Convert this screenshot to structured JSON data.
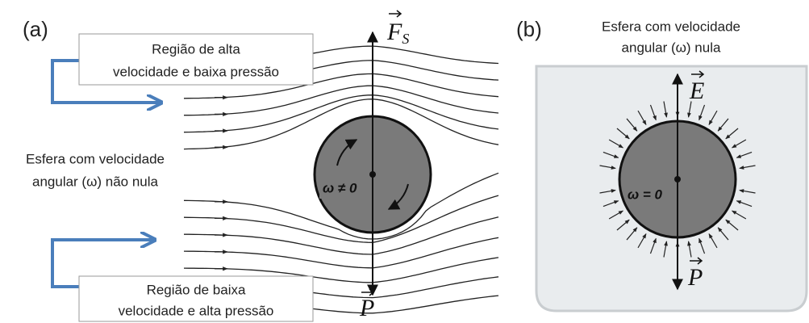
{
  "panel_a": {
    "label": "(a)",
    "top_box": {
      "lines": [
        "Região de alta",
        "velocidade e baixa pressão"
      ]
    },
    "side_note": {
      "lines": [
        "Esfera com velocidade",
        "angular (ω) não nula"
      ]
    },
    "bottom_box": {
      "lines": [
        "Região de baixa",
        "velocidade e alta pressão"
      ]
    },
    "force_label": {
      "symbol": "F",
      "subscript": "S"
    },
    "weight_label": "P",
    "omega_label": "ω ≠ 0"
  },
  "panel_b": {
    "label": "(b)",
    "caption": {
      "lines": [
        "Esfera com velocidade",
        "angular (ω) nula"
      ]
    },
    "buoyancy_label": "E",
    "weight_label": "P",
    "omega_label": "ω = 0"
  }
}
